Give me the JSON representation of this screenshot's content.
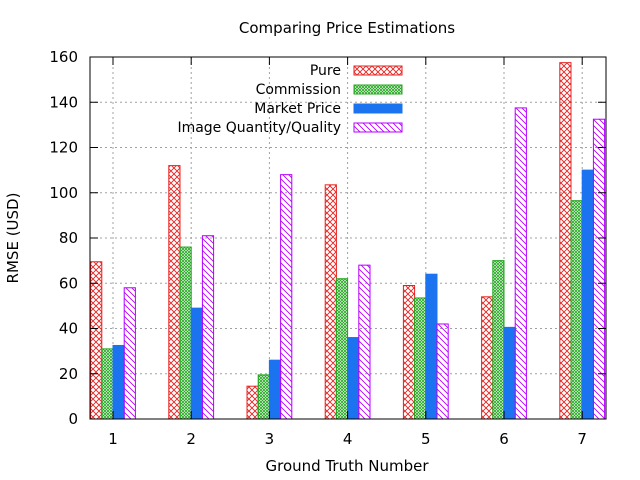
{
  "chart_data": {
    "type": "bar",
    "title": "Comparing Price Estimations",
    "xlabel": "Ground Truth Number",
    "ylabel": "RMSE (USD)",
    "ylim": [
      0,
      160
    ],
    "yticks": [
      0,
      20,
      40,
      60,
      80,
      100,
      120,
      140,
      160
    ],
    "categories": [
      "1",
      "2",
      "3",
      "4",
      "5",
      "6",
      "7"
    ],
    "grid": true,
    "legend_position": "top-center",
    "series": [
      {
        "name": "Pure",
        "color": "#e8201e",
        "pattern": "crosshatch",
        "values": [
          69.5,
          112,
          14.5,
          103.5,
          59,
          54,
          157.5
        ]
      },
      {
        "name": "Commission",
        "color": "#21a51e",
        "pattern": "dense-crosshatch",
        "values": [
          31,
          76,
          19.5,
          62,
          53.5,
          70,
          96.5
        ]
      },
      {
        "name": "Market Price",
        "color": "#1b73f0",
        "pattern": "solid",
        "values": [
          32.5,
          49,
          26,
          36,
          64,
          40.5,
          110
        ]
      },
      {
        "name": "Image Quantity/Quality",
        "color": "#b400ff",
        "pattern": "diagonal",
        "values": [
          58,
          81,
          108,
          68,
          42,
          137.5,
          132.5
        ]
      }
    ]
  }
}
